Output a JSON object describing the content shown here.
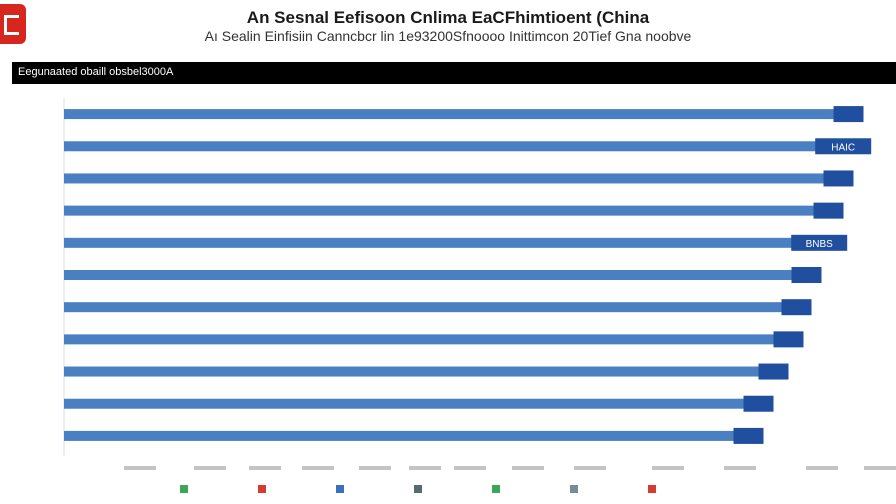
{
  "header": {
    "title": "An Sesnal Eefisoon Cnlima EaCFhimtioent (China",
    "subtitle": "Aı Sealin Einfisiin Canncbcr lin 1e93200Sfnoooo Inittimcon 20Tief Gna noobve",
    "banner": "Eegunaated obaill obsbel3000A"
  },
  "chart_data": {
    "type": "bar",
    "orientation": "horizontal",
    "categories": [
      "",
      "",
      "",
      "",
      "",
      "",
      "",
      "",
      "",
      "",
      ""
    ],
    "values": [
      850,
      846,
      840,
      830,
      822,
      808,
      798,
      790,
      775,
      760,
      750
    ],
    "value_labels": [
      "",
      "HAIC",
      "",
      "",
      "BNBS",
      "",
      "",
      "",
      "",
      "",
      ""
    ],
    "xlim": [
      0,
      896
    ],
    "x_ticks": [
      140,
      210,
      265,
      318,
      375,
      425,
      470,
      528,
      590,
      668,
      740,
      822,
      880
    ],
    "bar_color": "#4a7fc1",
    "title": "An Sesnal Eefisoon Cnlima EaCFhimtioent (China",
    "xlabel": "",
    "ylabel": "",
    "legend": {
      "position": "bottom",
      "items": [
        {
          "label": "",
          "color": "#3aa657"
        },
        {
          "label": "",
          "color": "#d63b2f"
        },
        {
          "label": "",
          "color": "#3c6fc4"
        },
        {
          "label": "",
          "color": "#5a6b70"
        },
        {
          "label": "",
          "color": "#3aa657"
        },
        {
          "label": "",
          "color": "#7a8a96"
        },
        {
          "label": "",
          "color": "#d63b2f"
        }
      ]
    },
    "grid": false
  }
}
